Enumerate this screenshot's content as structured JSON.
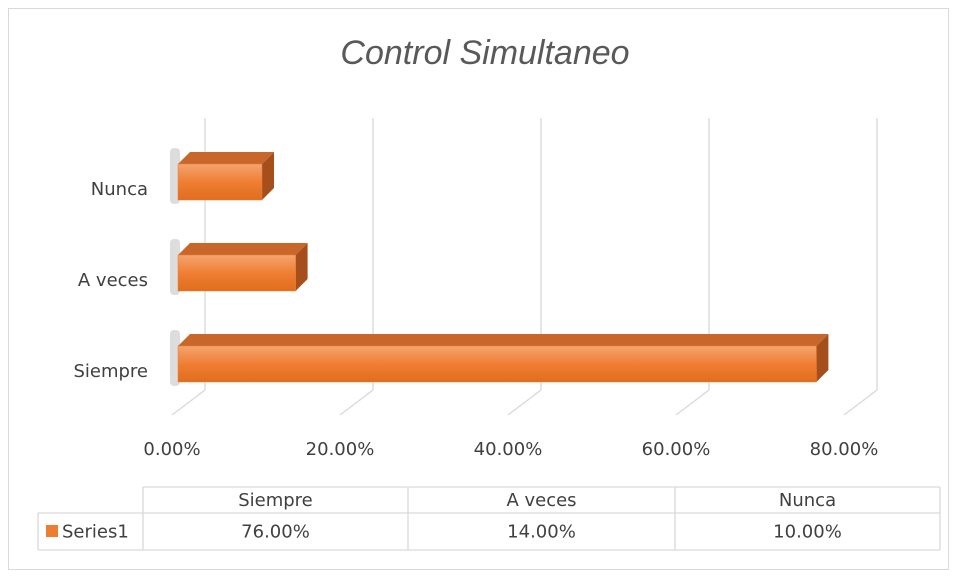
{
  "chart_data": {
    "type": "bar",
    "orientation": "horizontal",
    "title": "Control Simultaneo",
    "categories": [
      "Siempre",
      "A veces",
      "Nunca"
    ],
    "series": [
      {
        "name": "Series1",
        "color": "#ed7d31",
        "values": [
          76,
          14,
          10
        ],
        "value_labels": [
          "76.00%",
          "14.00%",
          "10.00%"
        ]
      }
    ],
    "xlim": [
      0,
      80
    ],
    "xticks": [
      {
        "value": 0,
        "label": "0.00%"
      },
      {
        "value": 20,
        "label": "20.00%"
      },
      {
        "value": 40,
        "label": "40.00%"
      },
      {
        "value": 60,
        "label": "60.00%"
      },
      {
        "value": 80,
        "label": "80.00%"
      }
    ],
    "grid": true
  }
}
